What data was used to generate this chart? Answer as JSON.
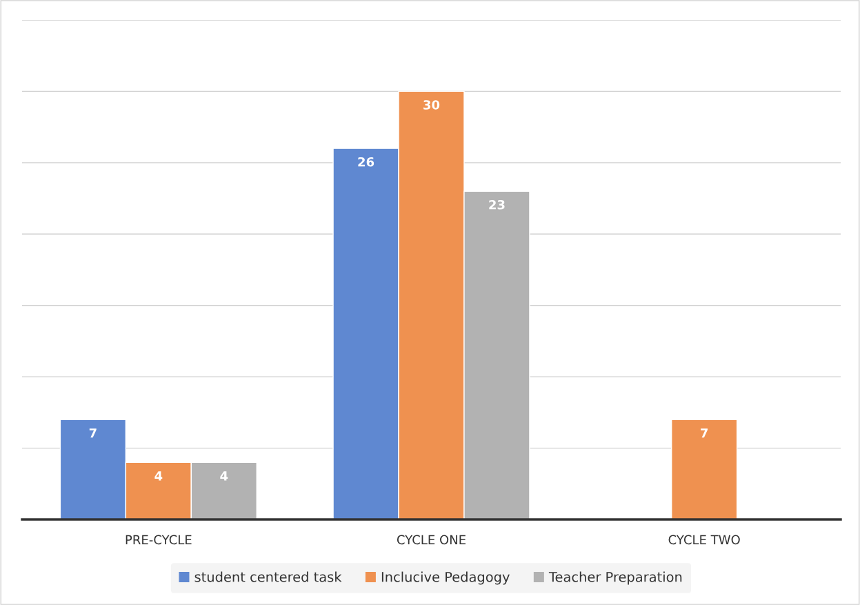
{
  "chart_data": {
    "type": "bar",
    "categories": [
      "PRE-CYCLE",
      "CYCLE ONE",
      "CYCLE TWO"
    ],
    "series": [
      {
        "name": "student centered task",
        "color": "#5f88d1",
        "values": [
          7,
          26,
          null
        ]
      },
      {
        "name": "Inclucive Pedagogy",
        "color": "#ef9150",
        "values": [
          4,
          30,
          7
        ]
      },
      {
        "name": "Teacher Preparation",
        "color": "#b2b2b2",
        "values": [
          4,
          23,
          null
        ]
      }
    ],
    "ylim": [
      0,
      35
    ],
    "yticks": [
      {
        "value": 0,
        "label": null
      },
      {
        "value": 5,
        "label": null
      },
      {
        "value": 10,
        "label": null
      },
      {
        "value": 15,
        "label": null
      },
      {
        "value": 20,
        "label": null
      },
      {
        "value": 25,
        "label": null
      },
      {
        "value": 30,
        "label": null
      },
      {
        "value": 35,
        "label": null
      }
    ],
    "grid": "y",
    "legend": "bottom",
    "data_labels": true
  }
}
